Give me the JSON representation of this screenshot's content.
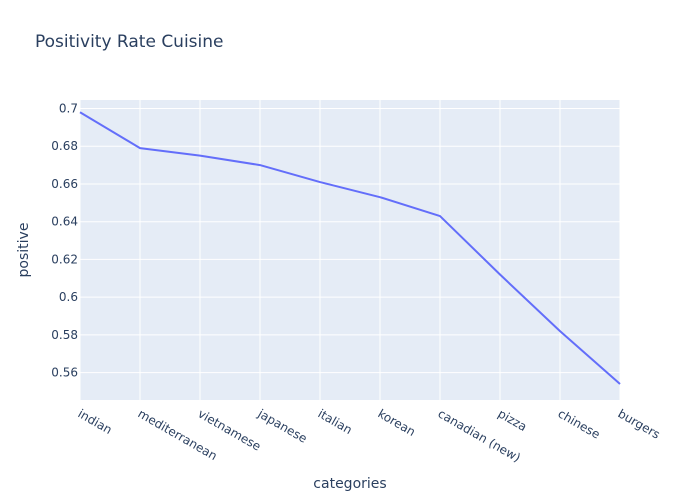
{
  "chart_data": {
    "type": "line",
    "title": "Positivity Rate Cuisine",
    "xlabel": "categories",
    "ylabel": "positive",
    "categories": [
      "indian",
      "mediterranean",
      "vietnamese",
      "japanese",
      "italian",
      "korean",
      "canadian (new)",
      "pizza",
      "chinese",
      "burgers"
    ],
    "values": [
      0.698,
      0.679,
      0.675,
      0.67,
      0.661,
      0.653,
      0.643,
      0.612,
      0.582,
      0.554
    ],
    "yticks": [
      0.56,
      0.58,
      0.6,
      0.62,
      0.64,
      0.66,
      0.68,
      0.7
    ],
    "ytick_labels": [
      "0.56",
      "0.58",
      "0.6",
      "0.62",
      "0.64",
      "0.66",
      "0.68",
      "0.7"
    ],
    "ylim": [
      0.5455,
      0.7045
    ],
    "grid": true,
    "colors": {
      "line": "#636efa",
      "plot_bg": "#e5ecf6",
      "grid": "#ffffff",
      "text": "#2a3f5f"
    }
  }
}
